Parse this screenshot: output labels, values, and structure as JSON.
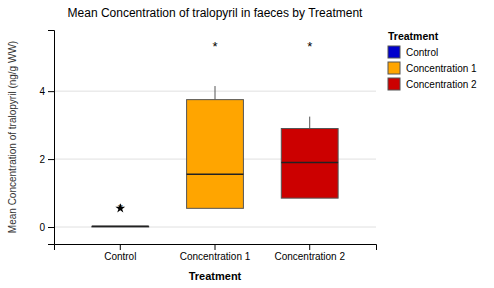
{
  "chart_data": {
    "type": "box",
    "title": "Mean Concentration of tralopyril in faeces by Treatment",
    "x_label": "Treatment",
    "y_label": "Mean Concentration of tralopyril (ng/g WW)",
    "categories": [
      "Control",
      "Concentration 1",
      "Concentration 2"
    ],
    "colors": [
      "#0000CC",
      "#FFA500",
      "#CC0000"
    ],
    "values": [
      {
        "low": 0.0,
        "q1": 0.0,
        "median": 0.02,
        "q3": 0.02,
        "high": 0.02,
        "fliers": [
          0.55
        ]
      },
      {
        "low": 0.55,
        "q1": 0.55,
        "median": 1.55,
        "q3": 3.75,
        "high": 4.15,
        "fliers": []
      },
      {
        "low": 0.85,
        "q1": 0.85,
        "median": 1.9,
        "q3": 2.9,
        "high": 3.25,
        "fliers": []
      }
    ],
    "annotations": [
      {
        "text": "*",
        "x": "Concentration 1",
        "y": 5.3
      },
      {
        "text": "*",
        "x": "Concentration 2",
        "y": 5.3
      },
      {
        "text": "*",
        "x": "Control",
        "y": 0.55
      }
    ],
    "ylim": [
      -0.5,
      5.8
    ],
    "yticks": [
      0,
      2,
      4
    ],
    "grid": true,
    "legend": "upper right",
    "legend_title": "Treatment"
  }
}
